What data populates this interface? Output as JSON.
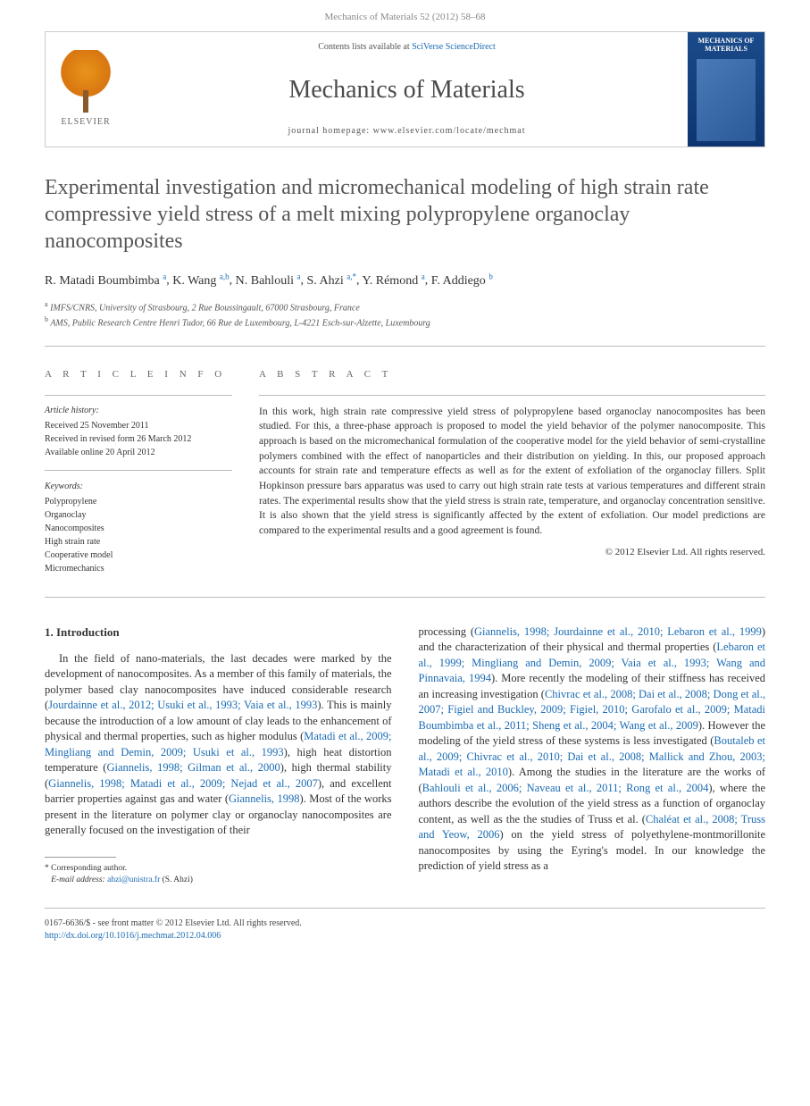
{
  "header": {
    "citation": "Mechanics of Materials 52 (2012) 58–68"
  },
  "banner": {
    "elsevier": "ELSEVIER",
    "contents_prefix": "Contents lists available at ",
    "contents_link": "SciVerse ScienceDirect",
    "journal": "Mechanics of Materials",
    "homepage_prefix": "journal homepage: ",
    "homepage": "www.elsevier.com/locate/mechmat",
    "cover_title": "MECHANICS OF MATERIALS"
  },
  "title": "Experimental investigation and micromechanical modeling of high strain rate compressive yield stress of a melt mixing polypropylene organoclay nanocomposites",
  "authors": [
    {
      "name": "R. Matadi Boumbimba",
      "aff": "a"
    },
    {
      "name": "K. Wang",
      "aff": "a,b"
    },
    {
      "name": "N. Bahlouli",
      "aff": "a"
    },
    {
      "name": "S. Ahzi",
      "aff": "a,*"
    },
    {
      "name": "Y. Rémond",
      "aff": "a"
    },
    {
      "name": "F. Addiego",
      "aff": "b"
    }
  ],
  "affiliations": [
    {
      "sup": "a",
      "text": "IMFS/CNRS, University of Strasbourg, 2 Rue Boussingault, 67000 Strasbourg, France"
    },
    {
      "sup": "b",
      "text": "AMS, Public Research Centre Henri Tudor, 66 Rue de Luxembourg, L-4221 Esch-sur-Alzette, Luxembourg"
    }
  ],
  "info": {
    "heading": "A R T I C L E   I N F O",
    "history_head": "Article history:",
    "history": "Received 25 November 2011\nReceived in revised form 26 March 2012\nAvailable online 20 April 2012",
    "keywords_head": "Keywords:",
    "keywords": [
      "Polypropylene",
      "Organoclay",
      "Nanocomposites",
      "High strain rate",
      "Cooperative model",
      "Micromechanics"
    ]
  },
  "abstract": {
    "heading": "A B S T R A C T",
    "body": "In this work, high strain rate compressive yield stress of polypropylene based organoclay nanocomposites has been studied. For this, a three-phase approach is proposed to model the yield behavior of the polymer nanocomposite. This approach is based on the micromechanical formulation of the cooperative model for the yield behavior of semi-crystalline polymers combined with the effect of nanoparticles and their distribution on yielding. In this, our proposed approach accounts for strain rate and temperature effects as well as for the extent of exfoliation of the organoclay fillers. Split Hopkinson pressure bars apparatus was used to carry out high strain rate tests at various temperatures and different strain rates. The experimental results show that the yield stress is strain rate, temperature, and organoclay concentration sensitive. It is also shown that the yield stress is significantly affected by the extent of exfoliation. Our model predictions are compared to the experimental results and a good agreement is found.",
    "copyright": "© 2012 Elsevier Ltd. All rights reserved."
  },
  "body": {
    "section": "1. Introduction",
    "col1": "In the field of nano-materials, the last decades were marked by the development of nanocomposites. As a member of this family of materials, the polymer based clay nanocomposites have induced considerable research (Jourdainne et al., 2012; Usuki et al., 1993; Vaia et al., 1993). This is mainly because the introduction of a low amount of clay leads to the enhancement of physical and thermal properties, such as higher modulus (Matadi et al., 2009; Mingliang and Demin, 2009; Usuki et al., 1993), high heat distortion temperature (Giannelis, 1998; Gilman et al., 2000), high thermal stability (Giannelis, 1998; Matadi et al., 2009; Nejad et al., 2007), and excellent barrier properties against gas and water (Giannelis, 1998). Most of the works present in the literature on polymer clay or organoclay nanocomposites are generally focused on the investigation of their",
    "col2": "processing (Giannelis, 1998; Jourdainne et al., 2010; Lebaron et al., 1999) and the characterization of their physical and thermal properties (Lebaron et al., 1999; Mingliang and Demin, 2009; Vaia et al., 1993; Wang and Pinnavaia, 1994). More recently the modeling of their stiffness has received an increasing investigation (Chivrac et al., 2008; Dai et al., 2008; Dong et al., 2007; Figiel and Buckley, 2009; Figiel, 2010; Garofalo et al., 2009; Matadi Boumbimba et al., 2011; Sheng et al., 2004; Wang et al., 2009). However the modeling of the yield stress of these systems is less investigated (Boutaleb et al., 2009; Chivrac et al., 2010; Dai et al., 2008; Mallick and Zhou, 2003; Matadi et al., 2010). Among the studies in the literature are the works of (Bahlouli et al., 2006; Naveau et al., 2011; Rong et al., 2004), where the authors describe the evolution of the yield stress as a function of organoclay content, as well as the the studies of Truss et al. (Chaléat et al., 2008; Truss and Yeow, 2006) on the yield stress of polyethylene-montmorillonite nanocomposites by using the Eyring's model. In our knowledge the prediction of yield stress as a"
  },
  "footnote": {
    "corr": "* Corresponding author.",
    "email_label": "E-mail address:",
    "email": "ahzi@unistra.fr",
    "email_who": "(S. Ahzi)"
  },
  "bottom": {
    "line1": "0167-6636/$ - see front matter © 2012 Elsevier Ltd. All rights reserved.",
    "doi": "http://dx.doi.org/10.1016/j.mechmat.2012.04.006"
  },
  "colors": {
    "link": "#1a6bb3",
    "text": "#333333",
    "muted": "#888888",
    "rule": "#bbbbbb",
    "elsevier_orange": "#e8941a",
    "cover_blue": "#1a4a8a"
  }
}
